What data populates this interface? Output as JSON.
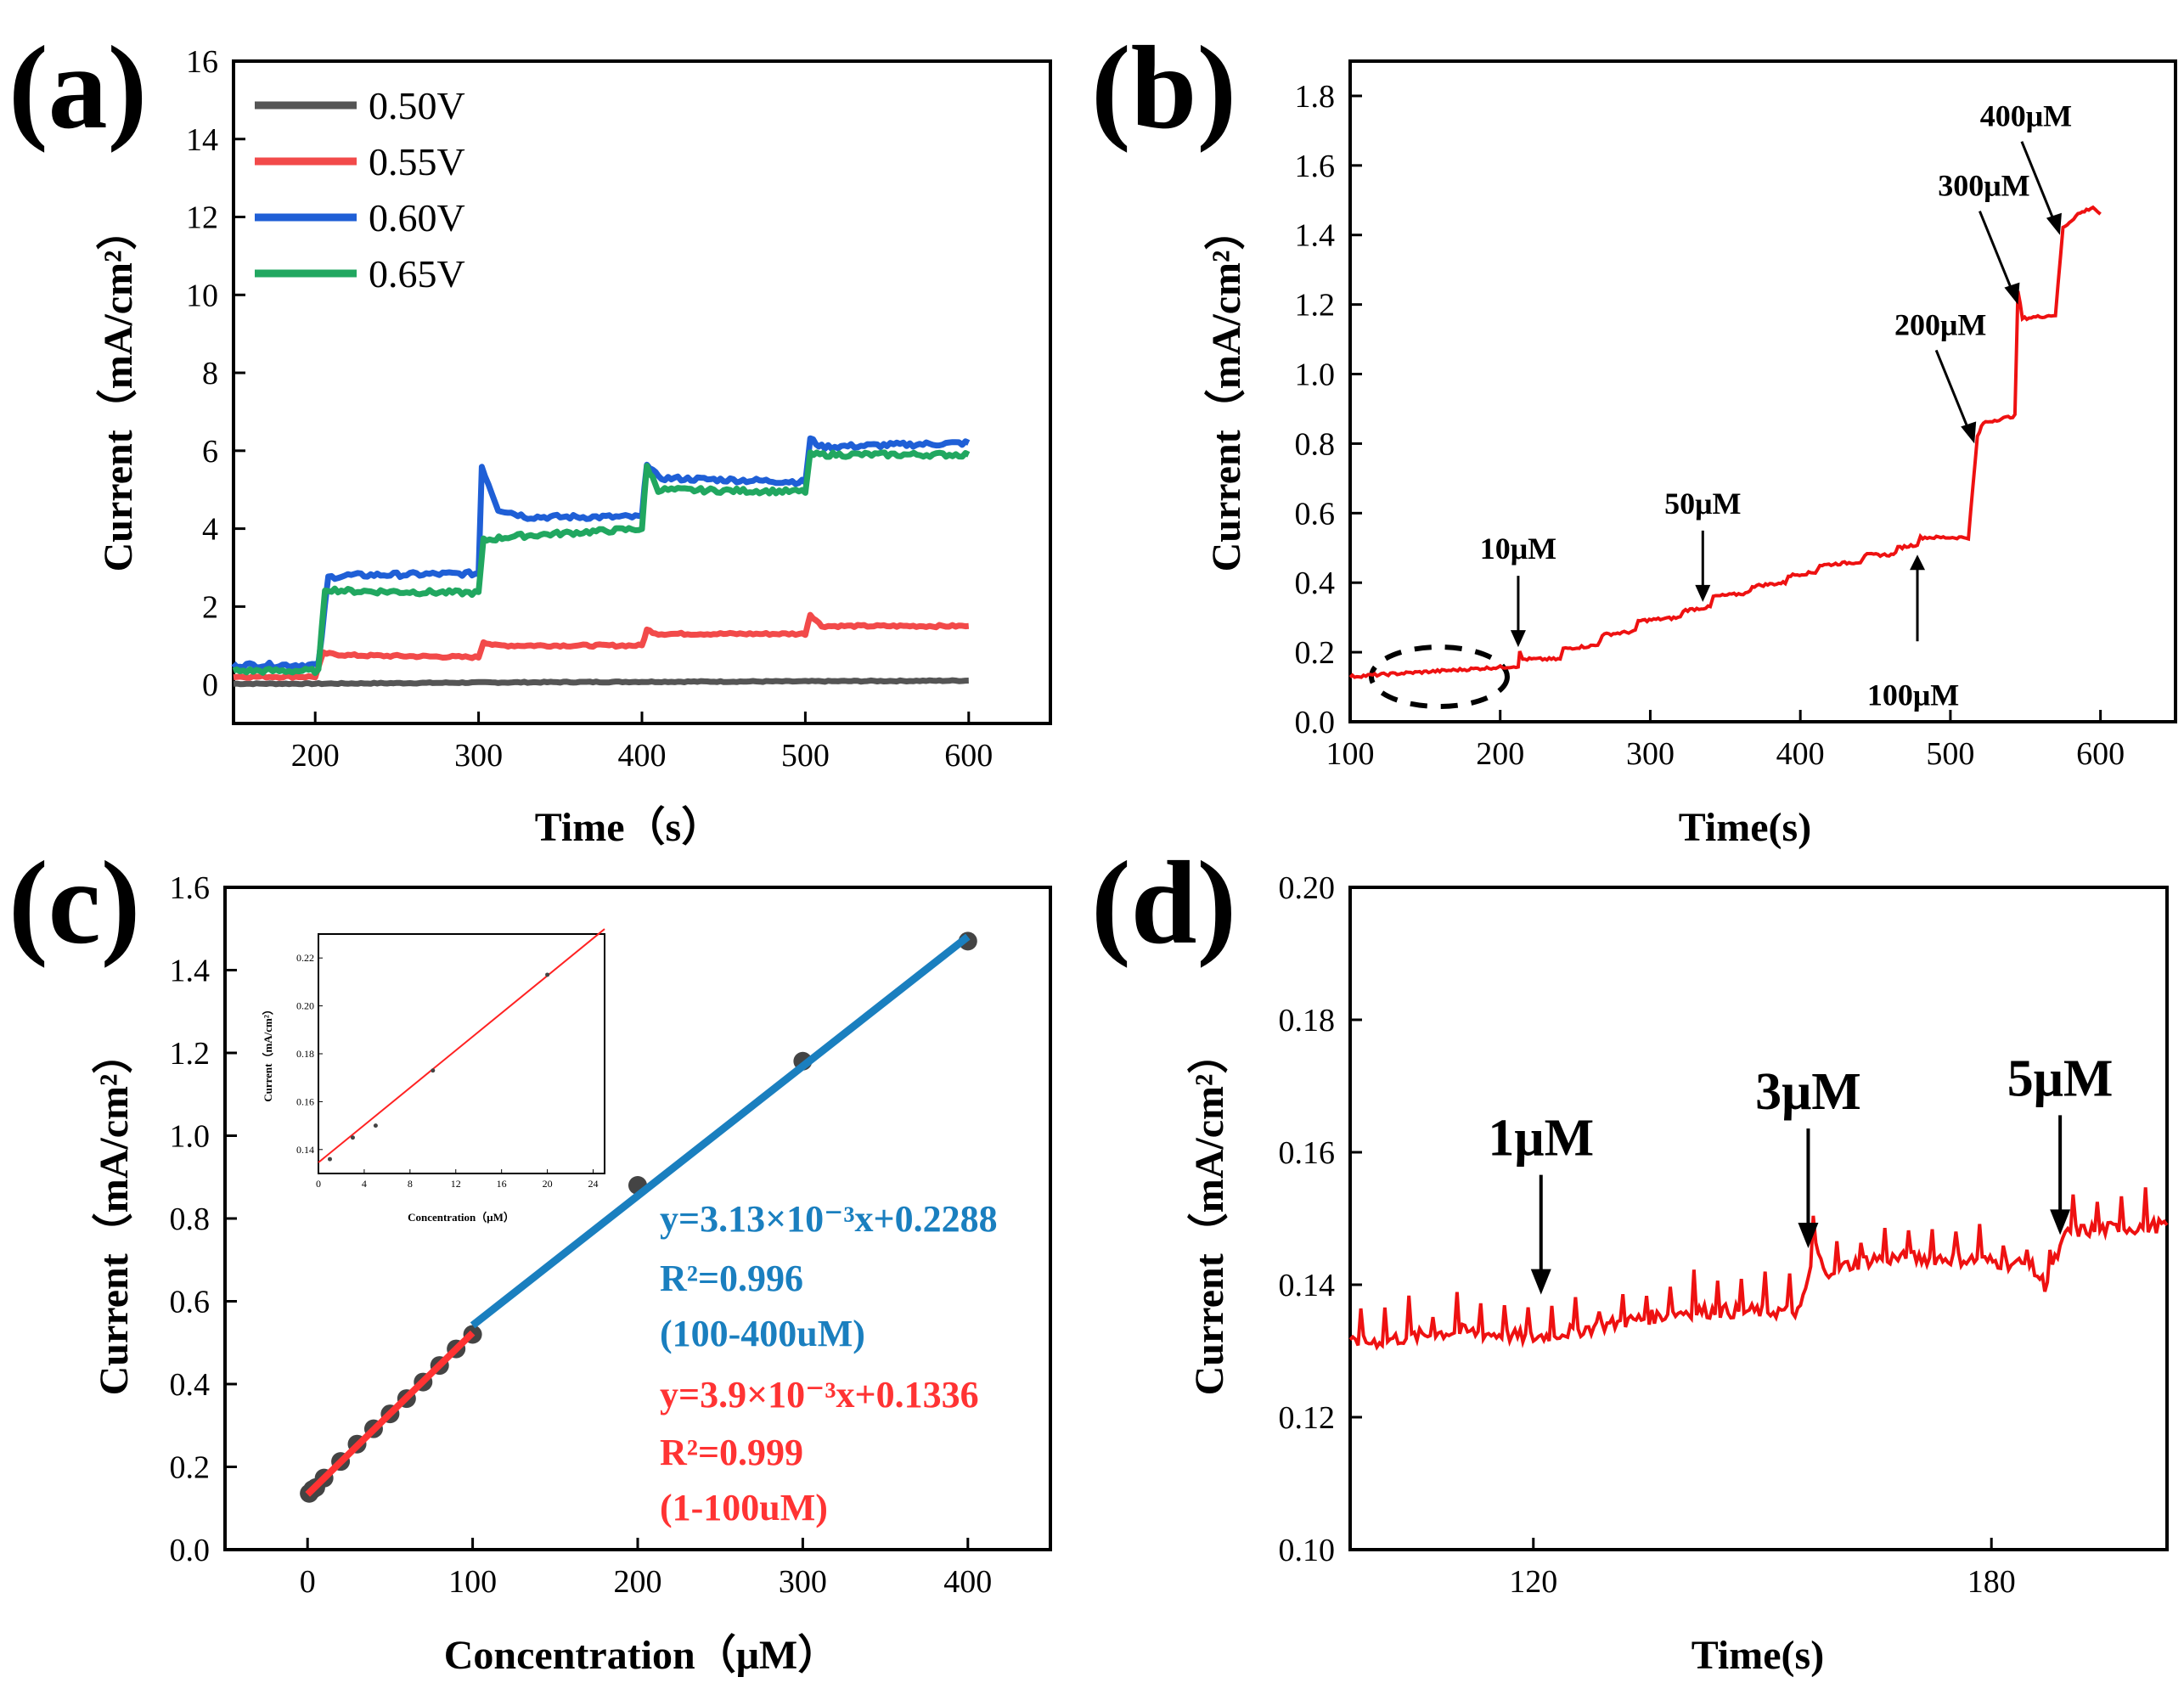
{
  "chart_data": [
    {
      "panel": "(a)",
      "type": "line",
      "xlabel": "Time（s）",
      "ylabel": "Current（mA/cm²）",
      "xlim": [
        150,
        650
      ],
      "ylim": [
        -1,
        16
      ],
      "xticks": [
        "200",
        "300",
        "400",
        "500",
        "600"
      ],
      "yticks": [
        "0",
        "2",
        "4",
        "6",
        "8",
        "10",
        "12",
        "14",
        "16"
      ],
      "legend_position": "top-left",
      "series": [
        {
          "name": "0.50V",
          "color": "#555555",
          "points": [
            [
              150,
              0.02
            ],
            [
              200,
              0.02
            ],
            [
              300,
              0.05
            ],
            [
              400,
              0.07
            ],
            [
              500,
              0.08
            ],
            [
              600,
              0.1
            ]
          ]
        },
        {
          "name": "0.55V",
          "color": "#f24a4a",
          "points": [
            [
              150,
              0.2
            ],
            [
              200,
              0.2
            ],
            [
              205,
              0.8
            ],
            [
              220,
              0.75
            ],
            [
              300,
              0.7
            ],
            [
              303,
              1.1
            ],
            [
              310,
              1.0
            ],
            [
              400,
              1.0
            ],
            [
              403,
              1.4
            ],
            [
              410,
              1.3
            ],
            [
              500,
              1.3
            ],
            [
              503,
              1.8
            ],
            [
              510,
              1.5
            ],
            [
              600,
              1.5
            ]
          ]
        },
        {
          "name": "0.60V",
          "color": "#1f5fd6",
          "points": [
            [
              150,
              0.5
            ],
            [
              202,
              0.5
            ],
            [
              208,
              2.75
            ],
            [
              220,
              2.8
            ],
            [
              300,
              2.85
            ],
            [
              302,
              5.6
            ],
            [
              312,
              4.5
            ],
            [
              330,
              4.3
            ],
            [
              400,
              4.3
            ],
            [
              403,
              5.7
            ],
            [
              410,
              5.3
            ],
            [
              500,
              5.2
            ],
            [
              503,
              6.3
            ],
            [
              510,
              6.1
            ],
            [
              600,
              6.2
            ]
          ]
        },
        {
          "name": "0.65V",
          "color": "#21a760",
          "points": [
            [
              150,
              0.35
            ],
            [
              202,
              0.35
            ],
            [
              206,
              2.45
            ],
            [
              220,
              2.4
            ],
            [
              300,
              2.35
            ],
            [
              303,
              3.7
            ],
            [
              320,
              3.8
            ],
            [
              400,
              4.0
            ],
            [
              403,
              5.6
            ],
            [
              410,
              5.0
            ],
            [
              500,
              4.95
            ],
            [
              503,
              5.9
            ],
            [
              600,
              5.9
            ]
          ]
        }
      ]
    },
    {
      "panel": "(b)",
      "type": "line",
      "xlabel": "Time(s)",
      "ylabel": "Current（mA/cm²）",
      "xlim": [
        100,
        650
      ],
      "ylim": [
        0,
        1.9
      ],
      "xticks": [
        "100",
        "200",
        "300",
        "400",
        "500",
        "600"
      ],
      "yticks": [
        "0.0",
        "0.2",
        "0.4",
        "0.6",
        "0.8",
        "1.0",
        "1.2",
        "1.4",
        "1.6",
        "1.8"
      ],
      "series": [
        {
          "name": "response",
          "color": "#ee1111",
          "points": [
            [
              100,
              0.13
            ],
            [
              212,
              0.16
            ],
            [
              213,
              0.2
            ],
            [
              215,
              0.18
            ],
            [
              240,
              0.18
            ],
            [
              242,
              0.21
            ],
            [
              265,
              0.22
            ],
            [
              268,
              0.25
            ],
            [
              290,
              0.26
            ],
            [
              292,
              0.29
            ],
            [
              320,
              0.3
            ],
            [
              322,
              0.32
            ],
            [
              340,
              0.33
            ],
            [
              342,
              0.36
            ],
            [
              365,
              0.37
            ],
            [
              368,
              0.39
            ],
            [
              390,
              0.4
            ],
            [
              392,
              0.42
            ],
            [
              410,
              0.43
            ],
            [
              413,
              0.45
            ],
            [
              440,
              0.46
            ],
            [
              443,
              0.48
            ],
            [
              462,
              0.48
            ],
            [
              465,
              0.5
            ],
            [
              478,
              0.51
            ],
            [
              480,
              0.53
            ],
            [
              512,
              0.53
            ],
            [
              518,
              0.82
            ],
            [
              522,
              0.86
            ],
            [
              543,
              0.88
            ],
            [
              545,
              1.24
            ],
            [
              548,
              1.16
            ],
            [
              570,
              1.17
            ],
            [
              575,
              1.42
            ],
            [
              585,
              1.46
            ],
            [
              595,
              1.48
            ],
            [
              600,
              1.46
            ]
          ]
        }
      ],
      "annotations": [
        {
          "text": "10μM",
          "x": 212,
          "y": 0.2
        },
        {
          "text": "50μM",
          "x": 335,
          "y": 0.33
        },
        {
          "text": "100μM",
          "x": 478,
          "y": 0.5
        },
        {
          "text": "200μM",
          "x": 516,
          "y": 0.8
        },
        {
          "text": "300μM",
          "x": 545,
          "y": 1.2
        },
        {
          "text": "400μM",
          "x": 573,
          "y": 1.4
        }
      ]
    },
    {
      "panel": "(c)",
      "type": "scatter",
      "xlabel": "Concentration（μM）",
      "ylabel": "Current（mA/cm²）",
      "xlim": [
        -50,
        450
      ],
      "ylim": [
        0,
        1.6
      ],
      "xticks": [
        "0",
        "100",
        "200",
        "300",
        "400"
      ],
      "yticks": [
        "0.0",
        "0.2",
        "0.4",
        "0.6",
        "0.8",
        "1.0",
        "1.2",
        "1.4",
        "1.6"
      ],
      "points": [
        [
          1,
          0.136
        ],
        [
          3,
          0.145
        ],
        [
          5,
          0.15
        ],
        [
          10,
          0.173
        ],
        [
          20,
          0.213
        ],
        [
          30,
          0.255
        ],
        [
          40,
          0.292
        ],
        [
          50,
          0.328
        ],
        [
          60,
          0.365
        ],
        [
          70,
          0.405
        ],
        [
          80,
          0.445
        ],
        [
          90,
          0.485
        ],
        [
          100,
          0.52
        ],
        [
          200,
          0.88
        ],
        [
          300,
          1.18
        ],
        [
          400,
          1.47
        ]
      ],
      "fits": [
        {
          "color": "#1a7fbf",
          "slope": 0.00313,
          "intercept": 0.2288,
          "x_range": [
            100,
            400
          ]
        },
        {
          "color": "#ff3333",
          "slope": 0.0039,
          "intercept": 0.1336,
          "x_range": [
            0,
            100
          ]
        }
      ],
      "equations": {
        "blue_line1": "y=3.13×10⁻³x+0.2288",
        "blue_line2": "R²=0.996",
        "blue_line3": "(100-400uM)",
        "red_line1": "y=3.9×10⁻³x+0.1336",
        "red_line2": "R²=0.999",
        "red_line3": "(1-100uM)"
      },
      "inset": {
        "xlabel": "Concentration（μM）",
        "ylabel": "Current（mA/cm²）",
        "xlim": [
          0,
          25
        ],
        "ylim": [
          0.13,
          0.23
        ],
        "xticks": [
          "0",
          "4",
          "8",
          "12",
          "16",
          "20",
          "24"
        ],
        "yticks": [
          "0.14",
          "0.16",
          "0.18",
          "0.20",
          "0.22"
        ],
        "points": [
          [
            1,
            0.136
          ],
          [
            3,
            0.145
          ],
          [
            5,
            0.15
          ],
          [
            10,
            0.173
          ],
          [
            20,
            0.213
          ]
        ]
      }
    },
    {
      "panel": "(d)",
      "type": "line",
      "xlabel": "Time(s)",
      "ylabel": "Current（mA/cm²）",
      "xlim": [
        96,
        203
      ],
      "ylim": [
        0.1,
        0.2
      ],
      "xticks": [
        "120",
        "180"
      ],
      "yticks": [
        "0.10",
        "0.12",
        "0.14",
        "0.16",
        "0.18",
        "0.20"
      ],
      "series": [
        {
          "name": "response",
          "color": "#ee1111",
          "points": [
            [
              96,
              0.131
            ],
            [
              110,
              0.133
            ],
            [
              120,
              0.132
            ],
            [
              130,
              0.134
            ],
            [
              140,
              0.136
            ],
            [
              150,
              0.136
            ],
            [
              155,
              0.136
            ],
            [
              157,
              0.146
            ],
            [
              158,
              0.142
            ],
            [
              165,
              0.144
            ],
            [
              175,
              0.144
            ],
            [
              185,
              0.143
            ],
            [
              187,
              0.14
            ],
            [
              190,
              0.148
            ],
            [
              203,
              0.149
            ]
          ]
        }
      ],
      "annotations": [
        {
          "text": "1μM",
          "x": 121,
          "y": 0.138
        },
        {
          "text": "3μM",
          "x": 156,
          "y": 0.145
        },
        {
          "text": "5μM",
          "x": 189,
          "y": 0.147
        }
      ]
    }
  ]
}
